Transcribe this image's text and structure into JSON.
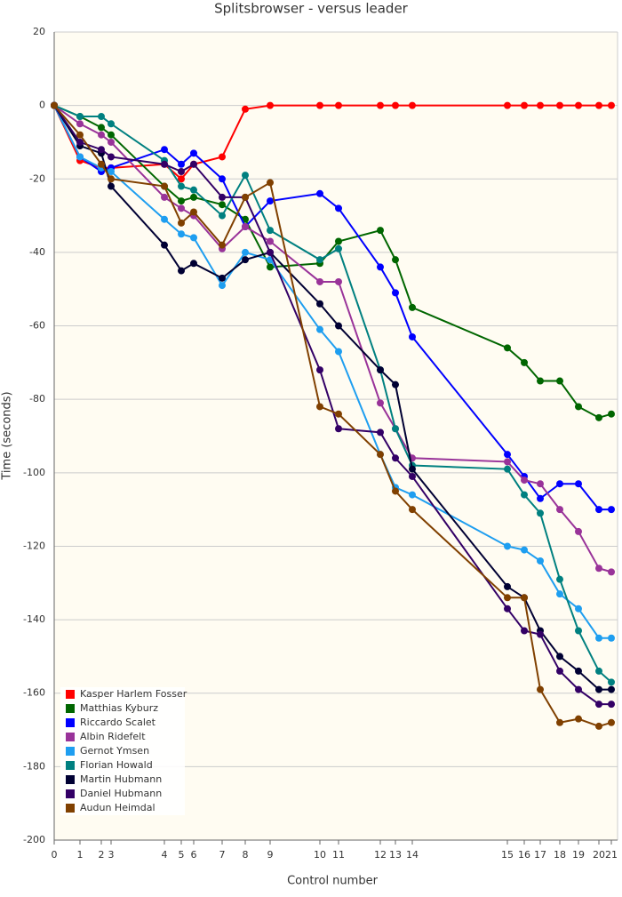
{
  "chart_data": {
    "type": "line",
    "title": "Splitsbrowser - versus leader",
    "x_label": "Control number",
    "y_label": "Time (seconds)",
    "x": [
      0,
      29,
      53,
      64,
      124,
      143,
      157,
      189,
      215,
      243,
      299,
      320,
      367,
      384,
      403,
      510,
      529,
      547,
      569,
      590,
      613,
      627
    ],
    "xlim": [
      0,
      634
    ],
    "xticks": [
      {
        "value": 0,
        "label": "0"
      },
      {
        "value": 29,
        "label": "1"
      },
      {
        "value": 53,
        "label": "2"
      },
      {
        "value": 64,
        "label": "3"
      },
      {
        "value": 124,
        "label": "4"
      },
      {
        "value": 143,
        "label": "5"
      },
      {
        "value": 157,
        "label": "6"
      },
      {
        "value": 189,
        "label": "7"
      },
      {
        "value": 215,
        "label": "8"
      },
      {
        "value": 243,
        "label": "9"
      },
      {
        "value": 299,
        "label": "10"
      },
      {
        "value": 320,
        "label": "11"
      },
      {
        "value": 367,
        "label": "12"
      },
      {
        "value": 384,
        "label": "13"
      },
      {
        "value": 403,
        "label": "14"
      },
      {
        "value": 510,
        "label": "15"
      },
      {
        "value": 529,
        "label": "16"
      },
      {
        "value": 547,
        "label": "17"
      },
      {
        "value": 569,
        "label": "18"
      },
      {
        "value": 590,
        "label": "19"
      },
      {
        "value": 613,
        "label": "20"
      },
      {
        "value": 627,
        "label": "21"
      }
    ],
    "ylim": [
      -200,
      20
    ],
    "yticks": [
      -200,
      -180,
      -160,
      -140,
      -120,
      -100,
      -80,
      -60,
      -40,
      -20,
      0,
      20
    ],
    "grid": true,
    "legend": "bottom-left",
    "series": [
      {
        "name": "Kasper Harlem Fosser",
        "color": "#ff0000",
        "values": [
          0,
          -15,
          -17,
          -17,
          -16,
          -20,
          -16,
          -14,
          -1,
          0,
          0,
          0,
          0,
          0,
          0,
          0,
          0,
          0,
          0,
          0,
          0,
          0
        ]
      },
      {
        "name": "Matthias Kyburz",
        "color": "#006600",
        "values": [
          0,
          -3,
          -6,
          -8,
          -22,
          -26,
          -25,
          -27,
          -31,
          -44,
          -43,
          -37,
          -34,
          -42,
          -55,
          -66,
          -70,
          -75,
          -75,
          -82,
          -85,
          -84
        ]
      },
      {
        "name": "Riccardo Scalet",
        "color": "#0000ff",
        "values": [
          0,
          -14,
          -18,
          -17,
          -12,
          -16,
          -13,
          -20,
          -33,
          -26,
          -24,
          -28,
          -44,
          -51,
          -63,
          -95,
          -101,
          -107,
          -103,
          -103,
          -110,
          -110
        ]
      },
      {
        "name": "Albin Ridefelt",
        "color": "#993399",
        "values": [
          0,
          -5,
          -8,
          -10,
          -25,
          -28,
          -30,
          -39,
          -33,
          -37,
          -48,
          -48,
          -81,
          -88,
          -96,
          -97,
          -102,
          -103,
          -110,
          -116,
          -126,
          -127
        ]
      },
      {
        "name": "Gernot Ymsen",
        "color": "#1e9ef0",
        "values": [
          0,
          -14,
          -17,
          -18,
          -31,
          -35,
          -36,
          -49,
          -40,
          -42,
          -61,
          -67,
          -95,
          -104,
          -106,
          -120,
          -121,
          -124,
          -133,
          -137,
          -145,
          -145
        ]
      },
      {
        "name": "Florian Howald",
        "color": "#008080",
        "values": [
          0,
          -3,
          -3,
          -5,
          -15,
          -22,
          -23,
          -30,
          -19,
          -34,
          -42,
          -39,
          -72,
          -88,
          -98,
          -99,
          -106,
          -111,
          -129,
          -143,
          -154,
          -157
        ]
      },
      {
        "name": "Martin Hubmann",
        "color": "#000033",
        "values": [
          0,
          -11,
          -13,
          -22,
          -38,
          -45,
          -43,
          -47,
          -42,
          -40,
          -54,
          -60,
          -72,
          -76,
          -99,
          -131,
          -134,
          -143,
          -150,
          -154,
          -159,
          -159
        ]
      },
      {
        "name": "Daniel Hubmann",
        "color": "#330066",
        "values": [
          0,
          -10,
          -12,
          -14,
          -16,
          -18,
          -16,
          -25,
          -25,
          -40,
          -72,
          -88,
          -89,
          -96,
          -101,
          -137,
          -143,
          -144,
          -154,
          -159,
          -163,
          -163
        ]
      },
      {
        "name": "Audun Heimdal",
        "color": "#804000",
        "values": [
          0,
          -8,
          -16,
          -20,
          -22,
          -32,
          -29,
          -38,
          -25,
          -21,
          -82,
          -84,
          -95,
          -105,
          -110,
          -134,
          -134,
          -159,
          -168,
          -167,
          -169,
          -168
        ]
      }
    ]
  }
}
